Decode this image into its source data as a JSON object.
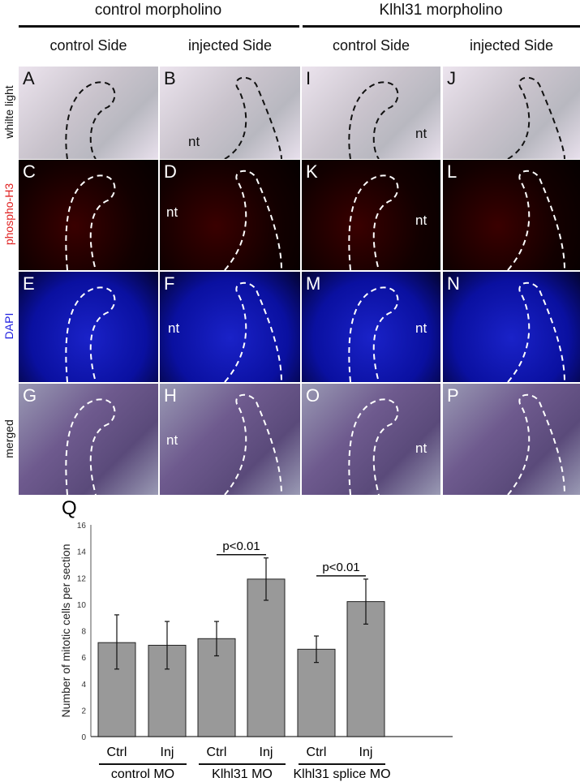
{
  "headers": {
    "left": "control morpholino",
    "right": "Klhl31 morpholino"
  },
  "subheaders": [
    "control Side",
    "injected Side",
    "control Side",
    "injected Side"
  ],
  "row_labels": [
    "whilte light",
    "phospho-H3",
    "DAPI",
    "merged"
  ],
  "row_label_colors": [
    "#111111",
    "#e02020",
    "#2020e0",
    "#111111"
  ],
  "panels": [
    [
      "A",
      "B",
      "I",
      "J"
    ],
    [
      "C",
      "D",
      "K",
      "L"
    ],
    [
      "E",
      "F",
      "M",
      "N"
    ],
    [
      "G",
      "H",
      "O",
      "P"
    ]
  ],
  "nt_label": "nt",
  "chart_panel_letter": "Q",
  "chart_data": {
    "type": "bar",
    "categories": [
      "Ctrl",
      "Inj",
      "Ctrl",
      "Inj",
      "Ctrl",
      "Inj"
    ],
    "groups": [
      "control MO",
      "Klhl31 MO",
      "Klhl31 splice MO"
    ],
    "values": [
      7.1,
      6.9,
      7.4,
      11.9,
      6.6,
      10.2
    ],
    "error_upper": [
      9.2,
      8.7,
      8.7,
      13.5,
      7.6,
      11.9
    ],
    "error_lower": [
      5.1,
      5.1,
      6.1,
      10.3,
      5.6,
      8.5
    ],
    "ylabel": "Number of mitotic cells per section",
    "ylim": [
      0,
      16
    ],
    "yticks": [
      "0",
      "2",
      "4",
      "6",
      "8",
      "10",
      "12",
      "14",
      "16"
    ],
    "annotations": [
      {
        "text": "p<0.01",
        "between": [
          2,
          3
        ]
      },
      {
        "text": "p<0.01",
        "between": [
          4,
          5
        ]
      }
    ],
    "bar_color": "#999999"
  }
}
